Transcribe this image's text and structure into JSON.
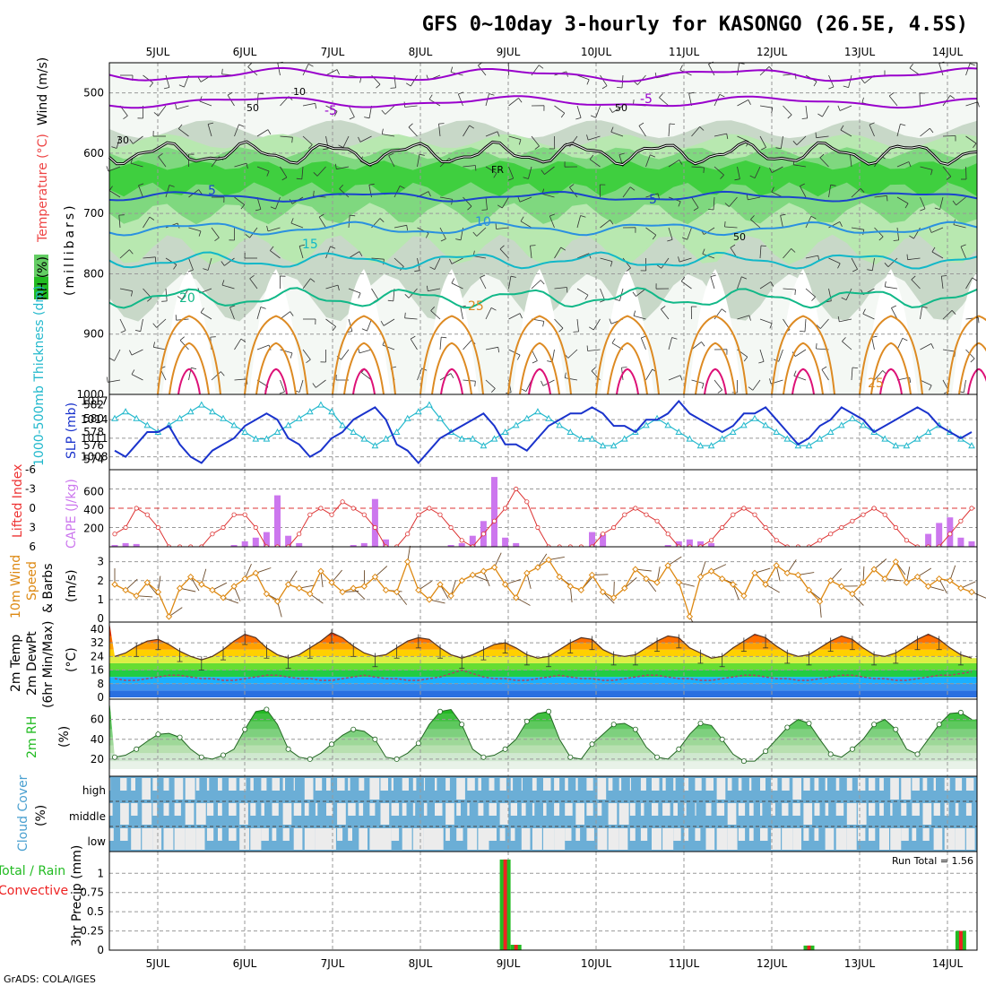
{
  "title": "GFS 0~10day 3-hourly for KASONGO (26.5E, 4.5S)",
  "credit": "GrADS: COLA/IGES",
  "date_labels": [
    "5JUL",
    "6JUL",
    "7JUL",
    "8JUL",
    "9JUL",
    "10JUL",
    "11JUL",
    "12JUL",
    "13JUL",
    "14JUL"
  ],
  "colors": {
    "temp_purple": "#9900cc",
    "temp_blue": "#1a44cc",
    "temp_lightblue": "#2a90e0",
    "temp_cyan": "#11b8c8",
    "temp_green": "#11b888",
    "temp_orange": "#dd8a22",
    "temp_magenta": "#dd1177",
    "slp": "#1a33cc",
    "thickness": "#22b8cc",
    "lifted": "#dd3333",
    "cape": "#cc77ee",
    "wind": "#dd8811",
    "rh": "#22bb22",
    "cloud": "#6baed6",
    "precip_total": "#22bb22",
    "precip_conv": "#ee2222"
  },
  "panels": {
    "upper": {
      "ylabel_wind": "Wind (m/s)",
      "ylabel_temp": "Temperature (°C)",
      "ylabel_rh": "RH (%)",
      "ylabel_units": "(millibars)",
      "y_ticks": [
        "500",
        "600",
        "700",
        "800",
        "900",
        "1000"
      ],
      "contour_labels": {
        "m5": "-5",
        "m5b": "-5",
        "p5": "5",
        "p5b": "5",
        "p10": "10",
        "p15": "15",
        "p20": "20",
        "p25": "25",
        "p25b": "25",
        "fr": "FR",
        "rh10": "10",
        "rh50a": "50",
        "rh50b": "50",
        "rh50c": "50",
        "rh30": "30"
      }
    },
    "slp": {
      "ylabel_thick": "1000-500mb Thickness (dm)",
      "ylabel_slp": "SLP (mb)",
      "left_ticks": [
        "582",
        "580",
        "578",
        "576",
        "574"
      ],
      "right_ticks": [
        "1017",
        "1014",
        "1011",
        "1008"
      ]
    },
    "cape": {
      "ylabel_li": "Lifted Index",
      "ylabel_cape": "CAPE (J/kg)",
      "left_ticks": [
        "-6",
        "-3",
        "0",
        "3",
        "6"
      ],
      "right_ticks": [
        "600",
        "400",
        "200"
      ]
    },
    "wind": {
      "ylabel1": "10m Wind",
      "ylabel2": "Speed",
      "ylabel3": "& Barbs",
      "units": "(m/s)",
      "ticks": [
        "3",
        "2",
        "1",
        "0"
      ]
    },
    "temp": {
      "ylabel1": "2m Temp",
      "ylabel2": "2m DewPt",
      "ylabel3": "(6hr Min/Max)",
      "units": "(°C)",
      "ticks": [
        "40",
        "32",
        "24",
        "16",
        "8",
        "0"
      ]
    },
    "rh": {
      "ylabel": "2m RH",
      "units": "(%)",
      "ticks": [
        "60",
        "40",
        "20"
      ]
    },
    "cloud": {
      "ylabel": "Cloud Cover",
      "units": "(%)",
      "levels": [
        "high",
        "middle",
        "low"
      ]
    },
    "precip": {
      "ylabel1": "Total / Rain",
      "ylabel2": "Convective",
      "ylabel3": "3hr Precip (mm)",
      "ticks": [
        "1",
        "0.75",
        "0.5",
        "0.25",
        "0"
      ],
      "run_total": "Run Total = 1.56"
    }
  },
  "chart_data": {
    "type": "meteogram",
    "x_labels": [
      "5JUL",
      "6JUL",
      "7JUL",
      "8JUL",
      "9JUL",
      "10JUL",
      "11JUL",
      "12JUL",
      "13JUL",
      "14JUL"
    ],
    "slp_mb": [
      1009,
      1008,
      1010,
      1012,
      1012,
      1013,
      1010,
      1008,
      1007,
      1009,
      1010,
      1011,
      1013,
      1014,
      1015,
      1014,
      1011,
      1010,
      1008,
      1009,
      1011,
      1012,
      1014,
      1015,
      1016,
      1014,
      1010,
      1009,
      1007,
      1009,
      1011,
      1012,
      1013,
      1014,
      1015,
      1013,
      1010,
      1010,
      1009,
      1011,
      1013,
      1014,
      1015,
      1015,
      1016,
      1015,
      1013,
      1013,
      1012,
      1014,
      1014,
      1015,
      1017,
      1015,
      1014,
      1013,
      1012,
      1013,
      1015,
      1015,
      1016,
      1014,
      1012,
      1010,
      1011,
      1013,
      1014,
      1016,
      1015,
      1014,
      1012,
      1013,
      1014,
      1015,
      1016,
      1015,
      1013,
      1012,
      1011,
      1012
    ],
    "thickness_dm": [
      580,
      581,
      580,
      579,
      578,
      579,
      580,
      581,
      582,
      581,
      580,
      579,
      578,
      577,
      577,
      578,
      579,
      580,
      581,
      582,
      581,
      579,
      578,
      577,
      576,
      577,
      578,
      580,
      581,
      582,
      580,
      578,
      577,
      577,
      576,
      577,
      578,
      579,
      580,
      581,
      580,
      579,
      578,
      577,
      577,
      576,
      576,
      577,
      578,
      579,
      580,
      579,
      578,
      577,
      576,
      576,
      577,
      578,
      579,
      580,
      579,
      578,
      577,
      576,
      576,
      577,
      578,
      579,
      580,
      579,
      578,
      577,
      576,
      576,
      577,
      578,
      579,
      578,
      577,
      576
    ],
    "lifted_index": [
      4,
      3,
      0,
      1,
      3,
      6,
      6,
      6,
      6,
      4,
      3,
      1,
      1,
      3,
      6,
      6,
      6,
      4,
      1,
      0,
      1,
      -1,
      0,
      1,
      3,
      6,
      6,
      4,
      1,
      0,
      1,
      3,
      5,
      6,
      4,
      2,
      0,
      -3,
      -1,
      3,
      6,
      6,
      6,
      6,
      6,
      4,
      3,
      1,
      0,
      1,
      2,
      4,
      6,
      6,
      6,
      5,
      3,
      1,
      0,
      1,
      3,
      5,
      6,
      6,
      6,
      5,
      4,
      3,
      2,
      1,
      0,
      1,
      3,
      5,
      6,
      6,
      6,
      4,
      2,
      0
    ],
    "cape_jkg": [
      20,
      40,
      30,
      0,
      0,
      0,
      0,
      0,
      0,
      0,
      0,
      20,
      60,
      100,
      160,
      560,
      120,
      40,
      0,
      0,
      0,
      0,
      20,
      40,
      520,
      80,
      0,
      0,
      0,
      0,
      0,
      20,
      40,
      120,
      280,
      760,
      100,
      40,
      0,
      0,
      0,
      0,
      0,
      0,
      160,
      140,
      0,
      0,
      0,
      0,
      0,
      20,
      60,
      80,
      60,
      40,
      0,
      0,
      0,
      0,
      0,
      0,
      0,
      0,
      0,
      0,
      0,
      0,
      0,
      0,
      0,
      0,
      0,
      0,
      0,
      140,
      260,
      320,
      100,
      60
    ],
    "wind_speed_ms": [
      1.8,
      1.5,
      1.2,
      1.9,
      1.4,
      0.1,
      1.6,
      2.2,
      1.8,
      1.5,
      1.1,
      1.7,
      2.1,
      2.4,
      1.3,
      0.9,
      1.8,
      1.6,
      1.3,
      2.5,
      1.9,
      1.4,
      1.6,
      1.7,
      2.2,
      1.5,
      1.4,
      3.0,
      1.5,
      1.0,
      1.8,
      1.2,
      2.0,
      2.3,
      2.5,
      2.7,
      1.8,
      1.1,
      2.4,
      2.7,
      3.1,
      2.2,
      1.7,
      1.5,
      2.3,
      1.4,
      1.1,
      1.6,
      2.6,
      2.1,
      1.9,
      2.8,
      1.9,
      0.1,
      2.2,
      2.5,
      2.1,
      1.8,
      1.2,
      2.4,
      1.8,
      2.8,
      2.4,
      2.3,
      1.5,
      0.9,
      2.0,
      1.7,
      1.3,
      1.9,
      2.6,
      2.1,
      3.0,
      1.9,
      2.2,
      1.7,
      2.1,
      2.0,
      1.6,
      1.4
    ],
    "temp_c": [
      24,
      26,
      30,
      33,
      34,
      31,
      27,
      24,
      22,
      24,
      28,
      33,
      37,
      35,
      29,
      25,
      23,
      25,
      29,
      33,
      38,
      35,
      30,
      26,
      24,
      25,
      29,
      33,
      35,
      34,
      29,
      25,
      23,
      25,
      28,
      31,
      32,
      29,
      25,
      23,
      24,
      28,
      32,
      35,
      34,
      28,
      25,
      24,
      25,
      29,
      33,
      36,
      35,
      29,
      26,
      23,
      24,
      29,
      33,
      37,
      35,
      30,
      26,
      24,
      25,
      29,
      33,
      36,
      34,
      29,
      25,
      24,
      26,
      30,
      34,
      37,
      34,
      29,
      25,
      23
    ],
    "dewpoint_c": [
      11,
      10,
      10,
      11,
      12,
      13,
      13,
      12,
      11,
      11,
      10,
      10,
      11,
      12,
      13,
      13,
      12,
      11,
      11,
      10,
      10,
      11,
      12,
      13,
      12,
      11,
      11,
      10,
      10,
      11,
      12,
      14,
      16,
      14,
      12,
      11,
      11,
      10,
      10,
      11,
      12,
      13,
      12,
      11,
      11,
      10,
      10,
      11,
      12,
      13,
      13,
      12,
      11,
      11,
      10,
      10,
      11,
      12,
      13,
      13,
      12,
      11,
      11,
      10,
      10,
      11,
      12,
      13,
      13,
      12,
      11,
      11,
      10,
      10,
      11,
      12,
      13,
      13,
      14,
      15
    ],
    "rh2m_pct": [
      22,
      24,
      30,
      38,
      45,
      46,
      42,
      30,
      22,
      20,
      24,
      30,
      50,
      68,
      70,
      55,
      30,
      22,
      20,
      26,
      35,
      44,
      50,
      48,
      40,
      22,
      20,
      26,
      36,
      55,
      68,
      70,
      55,
      30,
      22,
      24,
      30,
      40,
      58,
      66,
      68,
      40,
      22,
      20,
      35,
      45,
      55,
      56,
      50,
      32,
      22,
      20,
      30,
      45,
      56,
      54,
      40,
      25,
      18,
      18,
      28,
      40,
      52,
      60,
      56,
      40,
      25,
      22,
      30,
      40,
      55,
      60,
      50,
      30,
      25,
      40,
      55,
      66,
      67,
      60
    ],
    "cloud_high_pct": [
      90,
      40,
      60,
      20,
      60,
      50,
      20,
      10,
      70,
      80,
      60,
      30,
      40,
      70,
      50,
      30,
      80,
      90,
      20,
      40,
      60,
      30,
      80,
      50,
      10,
      30,
      80,
      40,
      70,
      90,
      80,
      60,
      20,
      30,
      70,
      50,
      40,
      80,
      90,
      60,
      30,
      50,
      70,
      80,
      40,
      20,
      60,
      80,
      90,
      50,
      30,
      70,
      80,
      60,
      40,
      30,
      20,
      60,
      70,
      80,
      50,
      40,
      30,
      20,
      40,
      60,
      80,
      70,
      50,
      30,
      40,
      60,
      20,
      10,
      30,
      60,
      80,
      50,
      40,
      30
    ],
    "cloud_mid_pct": [
      70,
      20,
      40,
      10,
      60,
      50,
      40,
      20,
      10,
      40,
      60,
      30,
      20,
      50,
      70,
      40,
      20,
      30,
      60,
      80,
      40,
      20,
      30,
      60,
      50,
      20,
      30,
      60,
      80,
      70,
      30,
      20,
      60,
      80,
      50,
      30,
      20,
      40,
      60,
      80,
      70,
      50,
      30,
      20,
      40,
      60,
      20,
      10,
      50,
      70,
      40,
      30,
      60,
      80,
      90,
      50,
      30,
      20,
      40,
      60,
      80,
      60,
      40,
      30,
      20,
      50,
      70,
      30,
      10,
      20,
      40,
      60,
      80,
      50,
      30,
      20,
      40,
      60,
      70,
      50
    ],
    "cloud_low_pct": [
      60,
      30,
      10,
      0,
      20,
      10,
      0,
      0,
      20,
      40,
      60,
      30,
      10,
      0,
      30,
      60,
      40,
      20,
      0,
      0,
      10,
      50,
      60,
      20,
      0,
      0,
      30,
      10,
      0,
      0,
      20,
      60,
      40,
      10,
      0,
      30,
      50,
      60,
      20,
      10,
      0,
      0,
      40,
      60,
      30,
      10,
      0,
      20,
      50,
      40,
      10,
      0,
      30,
      60,
      50,
      20,
      0,
      10,
      40,
      60,
      30,
      10,
      0,
      20,
      50,
      60,
      20,
      0,
      10,
      30,
      40,
      10,
      0,
      30,
      60,
      40,
      20,
      0,
      10,
      20
    ],
    "precip_total_mm": [
      0,
      0,
      0,
      0,
      0,
      0,
      0,
      0,
      0,
      0,
      0,
      0,
      0,
      0,
      0,
      0,
      0,
      0,
      0,
      0,
      0,
      0,
      0,
      0,
      0,
      0,
      0,
      0,
      0,
      0,
      0,
      0,
      0,
      0,
      0,
      0,
      1.18,
      0.07,
      0,
      0,
      0,
      0,
      0,
      0,
      0,
      0,
      0,
      0,
      0,
      0,
      0,
      0,
      0,
      0,
      0,
      0,
      0,
      0,
      0,
      0,
      0,
      0,
      0,
      0,
      0.06,
      0,
      0,
      0,
      0,
      0,
      0,
      0,
      0,
      0,
      0,
      0,
      0,
      0,
      0.25,
      0
    ],
    "precip_conv_mm": [
      0,
      0,
      0,
      0,
      0,
      0,
      0,
      0,
      0,
      0,
      0,
      0,
      0,
      0,
      0,
      0,
      0,
      0,
      0,
      0,
      0,
      0,
      0,
      0,
      0,
      0,
      0,
      0,
      0,
      0,
      0,
      0,
      0,
      0,
      0,
      0,
      1.18,
      0.07,
      0,
      0,
      0,
      0,
      0,
      0,
      0,
      0,
      0,
      0,
      0,
      0,
      0,
      0,
      0,
      0,
      0,
      0,
      0,
      0,
      0,
      0,
      0,
      0,
      0,
      0,
      0.06,
      0,
      0,
      0,
      0,
      0,
      0,
      0,
      0,
      0,
      0,
      0,
      0,
      0,
      0.25,
      0
    ]
  }
}
